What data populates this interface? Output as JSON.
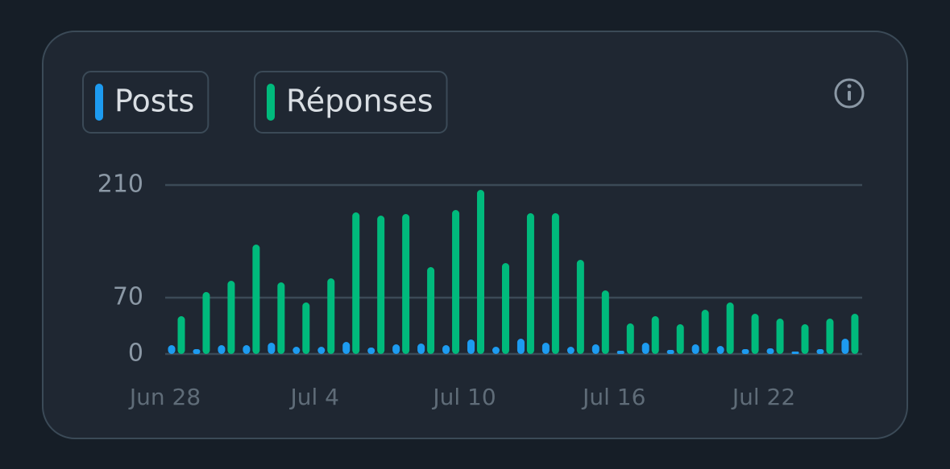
{
  "chart_data": {
    "type": "bar",
    "categories": [
      "Jun 28",
      null,
      null,
      null,
      null,
      null,
      "Jul 4",
      null,
      null,
      null,
      null,
      null,
      "Jul 10",
      null,
      null,
      null,
      null,
      null,
      "Jul 16",
      null,
      null,
      null,
      null,
      null,
      "Jul 22",
      null,
      null,
      null
    ],
    "series": [
      {
        "name": "Posts",
        "color": "#1d9bf0",
        "values": [
          11,
          6,
          11,
          11,
          14,
          9,
          9,
          15,
          8,
          12,
          13,
          11,
          18,
          9,
          19,
          14,
          9,
          12,
          4,
          14,
          5,
          12,
          10,
          6,
          7,
          3,
          6,
          19
        ]
      },
      {
        "name": "Réponses",
        "color": "#00ba7c",
        "values": [
          47,
          77,
          91,
          136,
          89,
          64,
          94,
          176,
          172,
          174,
          108,
          179,
          204,
          113,
          175,
          175,
          117,
          79,
          38,
          47,
          37,
          55,
          64,
          50,
          44,
          37,
          44,
          50
        ]
      }
    ],
    "ylim": [
      0,
      210
    ],
    "yticks": [
      0,
      70,
      210
    ],
    "grid": true
  }
}
